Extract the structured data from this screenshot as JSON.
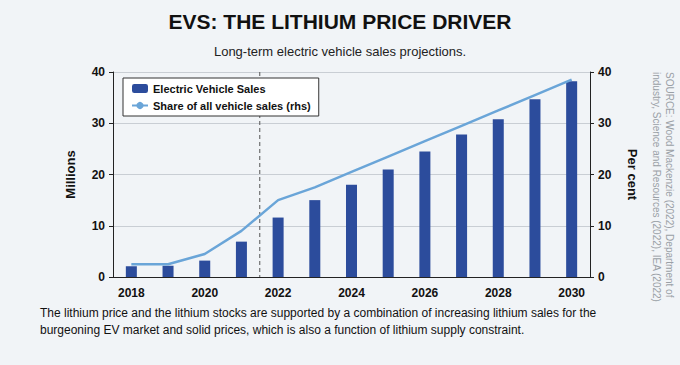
{
  "chart_data": {
    "type": "bar",
    "title": "EVS: THE LITHIUM PRICE DRIVER",
    "subtitle": "Long-term electric vehicle sales projections.",
    "caption": "The lithium price and the lithium stocks are supported by a combination of increasing lithium sales for the burgeoning EV market and solid prices, which is also a function of lithium supply constraint.",
    "source": [
      "SOURCE: Wood Mackenzie (2022), Department of",
      "industry, Science and Resources (2022), IEA (2022)"
    ],
    "categories": [
      "2018",
      null,
      "2020",
      null,
      "2022",
      null,
      "2024",
      null,
      "2026",
      null,
      "2028",
      null,
      "2030"
    ],
    "series": [
      {
        "name": "Electric Vehicle Sales",
        "type": "bar",
        "color": "#2c4c9c",
        "values": [
          2.1,
          2.2,
          3.2,
          6.9,
          11.6,
          15.0,
          18.0,
          21.0,
          24.5,
          27.8,
          30.8,
          34.7,
          38.2
        ]
      },
      {
        "name": "Share of all vehicle sales (rhs)",
        "type": "line",
        "color": "#6aa5d8",
        "axis": "y2",
        "values": [
          2.5,
          2.5,
          4.5,
          9.0,
          15.0,
          17.5,
          20.5,
          23.5,
          26.5,
          29.5,
          32.5,
          35.5,
          38.5
        ]
      }
    ],
    "y_label": "Millions",
    "y2_label": "Per cent",
    "ylim": [
      0,
      40
    ],
    "yticks": [
      0,
      10,
      20,
      30,
      40
    ],
    "y2lim": [
      0,
      40
    ],
    "y2ticks": [
      0,
      10,
      20,
      30,
      40
    ],
    "grid": true,
    "legend": "upper left"
  }
}
